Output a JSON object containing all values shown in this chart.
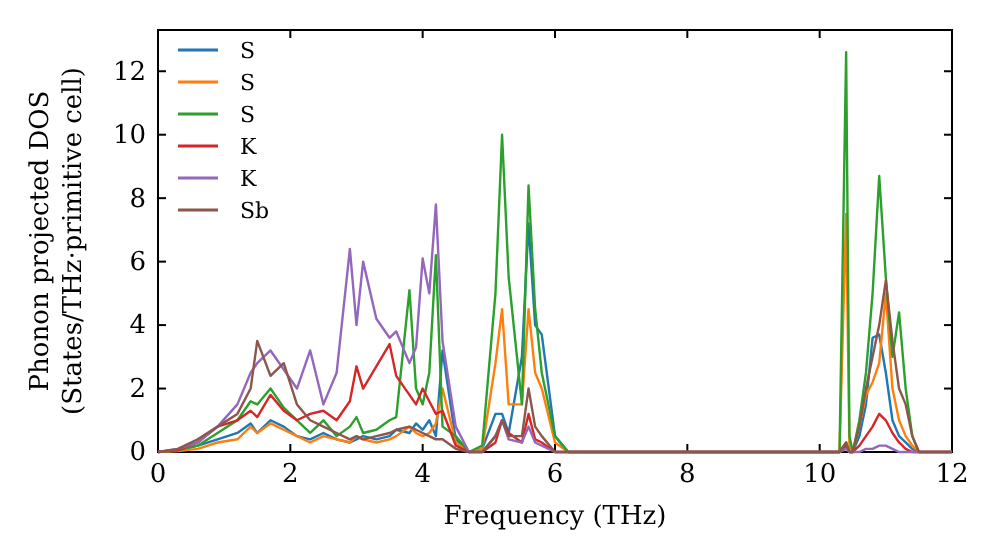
{
  "chart_data": {
    "type": "line",
    "xlabel": "Frequency (THz)",
    "ylabel": "Phonon projected DOS\n(States/THz·primitive cell)",
    "x": [
      0,
      0.3,
      0.6,
      0.9,
      1.2,
      1.4,
      1.5,
      1.7,
      1.9,
      2.1,
      2.3,
      2.5,
      2.7,
      2.9,
      3.0,
      3.1,
      3.3,
      3.5,
      3.6,
      3.8,
      3.9,
      4.0,
      4.1,
      4.2,
      4.3,
      4.5,
      4.7,
      4.9,
      5.1,
      5.2,
      5.3,
      5.5,
      5.6,
      5.7,
      5.8,
      6.0,
      6.2,
      7,
      8,
      9,
      10,
      10.3,
      10.4,
      10.45,
      10.5,
      10.6,
      10.7,
      10.8,
      10.9,
      11.0,
      11.1,
      11.2,
      11.3,
      11.4,
      11.5,
      11.7,
      12
    ],
    "series": [
      {
        "name": "S",
        "color": "#1f77b4",
        "values": [
          0,
          0.05,
          0.2,
          0.4,
          0.6,
          0.9,
          0.6,
          1.0,
          0.8,
          0.5,
          0.4,
          0.6,
          0.4,
          0.3,
          0.4,
          0.5,
          0.4,
          0.5,
          0.7,
          0.6,
          0.9,
          0.7,
          1.0,
          0.5,
          3.2,
          0.4,
          0,
          0.1,
          1.2,
          1.2,
          0.6,
          3.0,
          7.2,
          4.0,
          3.7,
          0.5,
          0,
          0,
          0,
          0,
          0,
          0,
          0.3,
          0,
          0,
          0.5,
          1.5,
          3.6,
          3.7,
          2.5,
          1.0,
          0.5,
          0.3,
          0.1,
          0,
          0,
          0
        ]
      },
      {
        "name": "S",
        "color": "#ff7f0e",
        "values": [
          0,
          0.03,
          0.1,
          0.3,
          0.4,
          0.8,
          0.6,
          0.9,
          0.7,
          0.5,
          0.3,
          0.5,
          0.4,
          0.3,
          0.5,
          0.4,
          0.3,
          0.4,
          0.5,
          0.8,
          0.6,
          0.5,
          0.6,
          0.9,
          2.0,
          0.3,
          0,
          0.1,
          2.8,
          4.5,
          1.5,
          1.5,
          4.5,
          2.5,
          2.0,
          0.3,
          0,
          0,
          0,
          0,
          0,
          0,
          7.5,
          0.2,
          0,
          0.8,
          1.8,
          2.2,
          2.8,
          5.0,
          2.0,
          1.0,
          0.5,
          0.2,
          0,
          0,
          0
        ]
      },
      {
        "name": "S",
        "color": "#2ca02c",
        "values": [
          0,
          0.05,
          0.2,
          0.6,
          1.0,
          1.6,
          1.5,
          2.0,
          1.4,
          1.0,
          0.6,
          1.0,
          0.5,
          0.8,
          1.1,
          0.6,
          0.7,
          1.0,
          1.1,
          5.1,
          2.0,
          1.5,
          2.5,
          6.2,
          0.8,
          0.5,
          0,
          0.2,
          5.0,
          10.0,
          5.5,
          1.5,
          8.4,
          4.5,
          2.5,
          0.5,
          0,
          0,
          0,
          0,
          0,
          0,
          12.6,
          0.5,
          0,
          1.0,
          2.5,
          5.0,
          8.7,
          5.5,
          3.0,
          4.4,
          2.0,
          0.5,
          0,
          null,
          null
        ]
      },
      {
        "name": "K",
        "color": "#d62728",
        "values": [
          0,
          0.05,
          0.3,
          0.8,
          1.0,
          1.3,
          1.1,
          1.8,
          1.3,
          1.0,
          1.2,
          1.3,
          1.0,
          1.6,
          2.7,
          2.0,
          2.7,
          3.4,
          2.4,
          1.8,
          1.5,
          2.0,
          1.6,
          1.2,
          1.3,
          0.2,
          0,
          0,
          0.3,
          1.0,
          0.6,
          0.3,
          1.2,
          0.4,
          0.3,
          0,
          0,
          0,
          0,
          0,
          0,
          0,
          0.2,
          0,
          0,
          0.2,
          0.5,
          0.8,
          1.2,
          1.0,
          0.6,
          0.3,
          0.1,
          0,
          0,
          0,
          0
        ]
      },
      {
        "name": "K",
        "color": "#9467bd",
        "values": [
          0,
          0.1,
          0.3,
          0.8,
          1.5,
          2.5,
          2.8,
          3.2,
          2.6,
          2.0,
          3.2,
          1.5,
          2.5,
          6.4,
          4.0,
          6.0,
          4.2,
          3.6,
          3.8,
          2.8,
          3.3,
          6.1,
          5.0,
          7.8,
          3.5,
          0.8,
          0,
          0,
          0.5,
          1.0,
          0.4,
          0.3,
          0.8,
          0.3,
          0.2,
          0,
          0,
          0,
          0,
          0,
          0,
          0,
          0.1,
          0,
          0,
          0,
          0.1,
          0.1,
          0.2,
          0.2,
          0.1,
          0,
          0,
          0,
          0,
          0,
          0
        ]
      },
      {
        "name": "Sb",
        "color": "#8c564b",
        "values": [
          0,
          0.1,
          0.4,
          0.8,
          1.2,
          2.0,
          3.5,
          2.4,
          2.8,
          1.5,
          1.0,
          0.8,
          0.6,
          0.4,
          0.5,
          0.4,
          0.5,
          0.6,
          0.7,
          0.8,
          0.7,
          0.6,
          0.5,
          0.4,
          0.4,
          0.1,
          0,
          0,
          0.5,
          1.0,
          0.5,
          0.5,
          2.0,
          0.8,
          0.5,
          0,
          0,
          0,
          0,
          0,
          0,
          0,
          0.3,
          0,
          0,
          0.8,
          2.0,
          3.0,
          4.0,
          5.4,
          3.5,
          2.0,
          1.5,
          0.5,
          0,
          0,
          0
        ]
      }
    ],
    "xlim": [
      0,
      12
    ],
    "xticks": [
      0,
      2,
      4,
      6,
      8,
      10,
      12
    ],
    "ylim": [
      0,
      13.3
    ],
    "yticks": [
      0,
      2,
      4,
      6,
      8,
      10,
      12
    ],
    "legend": "top left",
    "grid": false
  }
}
